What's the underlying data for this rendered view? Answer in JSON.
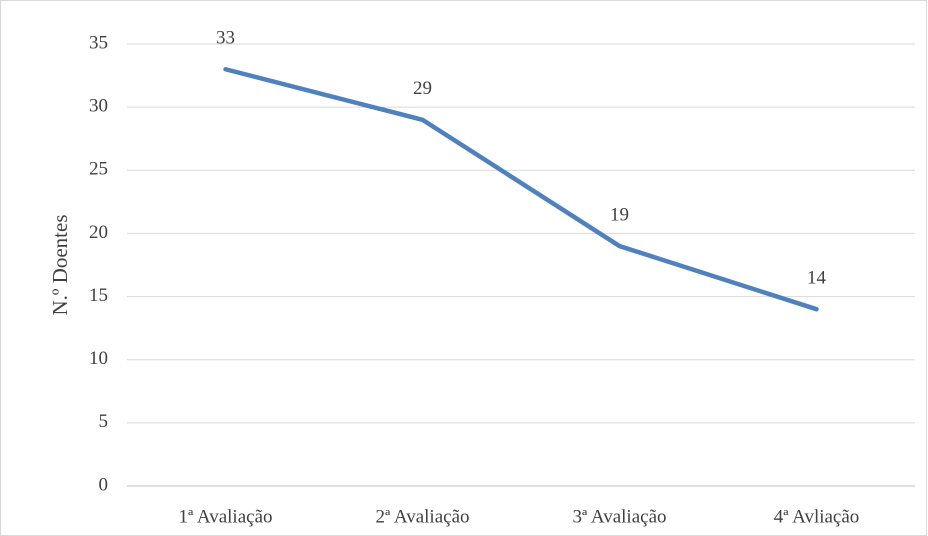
{
  "chart_data": {
    "type": "line",
    "y_label": "N.º Doentes",
    "categories": [
      "1ª Avaliação",
      "2ª Avaliação",
      "3ª Avaliação",
      "4ª Avliação"
    ],
    "values": [
      33,
      29,
      19,
      14
    ],
    "color": "#4f81bd",
    "ylim": [
      0,
      35
    ],
    "yticks": [
      0,
      5,
      10,
      15,
      20,
      25,
      30,
      35
    ],
    "grid": true
  }
}
